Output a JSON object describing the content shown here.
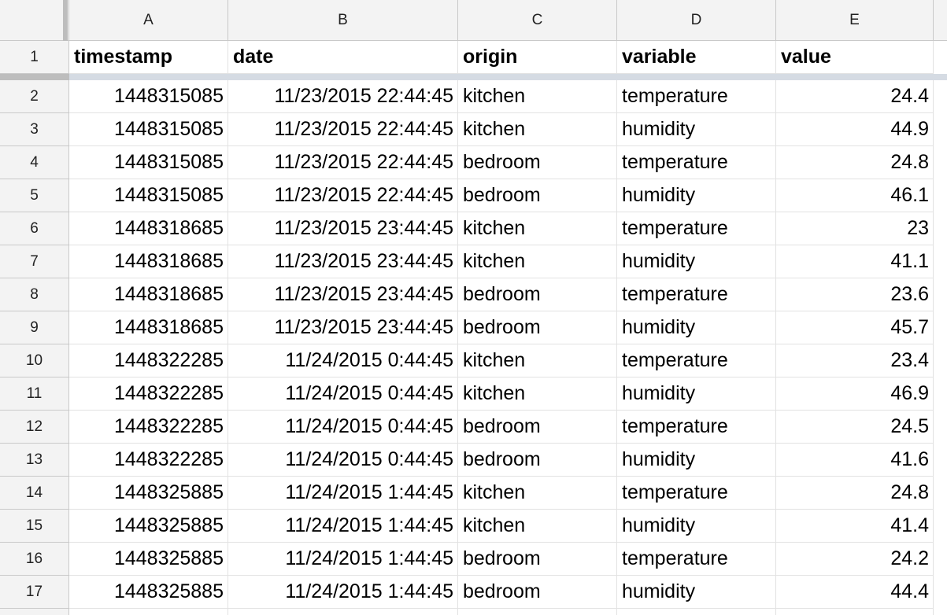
{
  "sheet": {
    "columns": [
      "A",
      "B",
      "C",
      "D",
      "E"
    ],
    "header_row": {
      "row_number": "1",
      "cells": [
        "timestamp",
        "date",
        "origin",
        "variable",
        "value"
      ]
    },
    "rows": [
      {
        "row_number": "2",
        "timestamp": "1448315085",
        "date": "11/23/2015 22:44:45",
        "origin": "kitchen",
        "variable": "temperature",
        "value": "24.4"
      },
      {
        "row_number": "3",
        "timestamp": "1448315085",
        "date": "11/23/2015 22:44:45",
        "origin": "kitchen",
        "variable": "humidity",
        "value": "44.9"
      },
      {
        "row_number": "4",
        "timestamp": "1448315085",
        "date": "11/23/2015 22:44:45",
        "origin": "bedroom",
        "variable": "temperature",
        "value": "24.8"
      },
      {
        "row_number": "5",
        "timestamp": "1448315085",
        "date": "11/23/2015 22:44:45",
        "origin": "bedroom",
        "variable": "humidity",
        "value": "46.1"
      },
      {
        "row_number": "6",
        "timestamp": "1448318685",
        "date": "11/23/2015 23:44:45",
        "origin": "kitchen",
        "variable": "temperature",
        "value": "23"
      },
      {
        "row_number": "7",
        "timestamp": "1448318685",
        "date": "11/23/2015 23:44:45",
        "origin": "kitchen",
        "variable": "humidity",
        "value": "41.1"
      },
      {
        "row_number": "8",
        "timestamp": "1448318685",
        "date": "11/23/2015 23:44:45",
        "origin": "bedroom",
        "variable": "temperature",
        "value": "23.6"
      },
      {
        "row_number": "9",
        "timestamp": "1448318685",
        "date": "11/23/2015 23:44:45",
        "origin": "bedroom",
        "variable": "humidity",
        "value": "45.7"
      },
      {
        "row_number": "10",
        "timestamp": "1448322285",
        "date": "11/24/2015 0:44:45",
        "origin": "kitchen",
        "variable": "temperature",
        "value": "23.4"
      },
      {
        "row_number": "11",
        "timestamp": "1448322285",
        "date": "11/24/2015 0:44:45",
        "origin": "kitchen",
        "variable": "humidity",
        "value": "46.9"
      },
      {
        "row_number": "12",
        "timestamp": "1448322285",
        "date": "11/24/2015 0:44:45",
        "origin": "bedroom",
        "variable": "temperature",
        "value": "24.5"
      },
      {
        "row_number": "13",
        "timestamp": "1448322285",
        "date": "11/24/2015 0:44:45",
        "origin": "bedroom",
        "variable": "humidity",
        "value": "41.6"
      },
      {
        "row_number": "14",
        "timestamp": "1448325885",
        "date": "11/24/2015 1:44:45",
        "origin": "kitchen",
        "variable": "temperature",
        "value": "24.8"
      },
      {
        "row_number": "15",
        "timestamp": "1448325885",
        "date": "11/24/2015 1:44:45",
        "origin": "kitchen",
        "variable": "humidity",
        "value": "41.4"
      },
      {
        "row_number": "16",
        "timestamp": "1448325885",
        "date": "11/24/2015 1:44:45",
        "origin": "bedroom",
        "variable": "temperature",
        "value": "24.2"
      },
      {
        "row_number": "17",
        "timestamp": "1448325885",
        "date": "11/24/2015 1:44:45",
        "origin": "bedroom",
        "variable": "humidity",
        "value": "44.4"
      }
    ]
  }
}
